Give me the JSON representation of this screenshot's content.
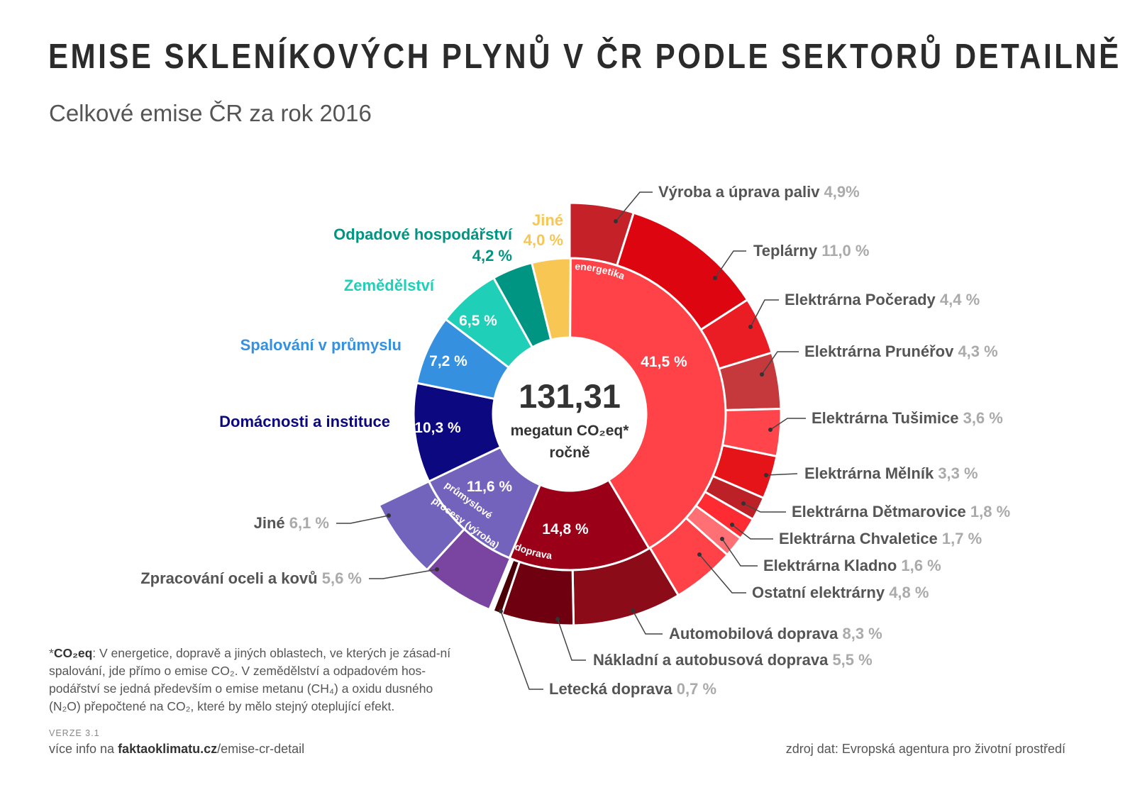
{
  "title": "EMISE SKLENÍKOVÝCH PLYNŮ V ČR PODLE SEKTORŮ DETAILNĚ",
  "subtitle": "Celkové emise ČR za rok 2016",
  "center": {
    "value": "131,31",
    "line1": "megatun CO₂eq*",
    "line2": "ročně"
  },
  "footnote": {
    "term": "CO₂eq",
    "text": ": V energetice, dopravě a jiných oblastech, ve kterých je zásad-ní spalování, jde přímo o emise CO₂. V zemědělství a odpadovém hos-podářství se jedná především o emise metanu (CH₄) a oxidu dusného (N₂O) přepočtené na CO₂, které by mělo stejný oteplující efekt."
  },
  "version": "VERZE 3.1",
  "more_info": {
    "prefix": "více info na ",
    "site": "faktaoklimatu.cz",
    "path": "/emise-cr-detail"
  },
  "source": "zdroj dat: Evropská agentura pro životní prostředí",
  "chart_data": {
    "type": "sunburst",
    "total": 131.31,
    "unit": "megatun CO₂eq ročně",
    "inner": [
      {
        "name": "energetika",
        "value": 41.5,
        "value_label": "41,5 %",
        "color": "#ff4248"
      },
      {
        "name": "doprava",
        "value": 14.8,
        "value_label": "14,8 %",
        "color": "#9b0019"
      },
      {
        "name": "průmyslové procesy (výroba)",
        "value": 11.6,
        "value_label": "11,6 %",
        "color": "#7463bd"
      },
      {
        "name": "Domácnosti a instituce",
        "value": 10.3,
        "value_label": "10,3 %",
        "color": "#0b0880"
      },
      {
        "name": "Spalování v průmyslu",
        "value": 7.2,
        "value_label": "7,2 %",
        "color": "#3591e0"
      },
      {
        "name": "Zemědělství",
        "value": 6.5,
        "value_label": "6,5 %",
        "color": "#20cfb7"
      },
      {
        "name": "Odpadové hospodářství",
        "value": 4.2,
        "value_label": "4,2 %",
        "color": "#009583"
      },
      {
        "name": "Jiné",
        "value": 4.0,
        "value_label": "4,0 %",
        "color": "#f7c653"
      }
    ],
    "outer": [
      {
        "name": "Výroba a úprava paliv",
        "value": 4.9,
        "value_label": "4,9%",
        "color": "#c42128"
      },
      {
        "name": "Teplárny",
        "value": 11.0,
        "value_label": "11,0 %",
        "color": "#dd0510"
      },
      {
        "name": "Elektrárna Počerady",
        "value": 4.4,
        "value_label": "4,4 %",
        "color": "#ea1c24"
      },
      {
        "name": "Elektrárna Prunéřov",
        "value": 4.3,
        "value_label": "4,3 %",
        "color": "#c5383c"
      },
      {
        "name": "Elektrárna Tušimice",
        "value": 3.6,
        "value_label": "3,6 %",
        "color": "#ff444b"
      },
      {
        "name": "Elektrárna Mělník",
        "value": 3.3,
        "value_label": "3,3 %",
        "color": "#e41419"
      },
      {
        "name": "Elektrárna Dětmarovice",
        "value": 1.8,
        "value_label": "1,8 %",
        "color": "#bb2126"
      },
      {
        "name": "Elektrárna Chvaletice",
        "value": 1.7,
        "value_label": "1,7 %",
        "color": "#ff2b33"
      },
      {
        "name": "Elektrárna Kladno",
        "value": 1.6,
        "value_label": "1,6 %",
        "color": "#ff7074"
      },
      {
        "name": "Ostatní elektrárny",
        "value": 4.8,
        "value_label": "4,8 %",
        "color": "#ff4248"
      },
      {
        "name": "Automobilová doprava",
        "value": 8.3,
        "value_label": "8,3 %",
        "color": "#8b0b19"
      },
      {
        "name": "Nákladní a autobusová doprava",
        "value": 5.5,
        "value_label": "5,5 %",
        "color": "#6e0010"
      },
      {
        "name": "Letecká doprava",
        "value": 0.7,
        "value_label": "0,7 %",
        "color": "#4b0008"
      },
      {
        "name": "gap",
        "value": 0.3,
        "value_label": "",
        "color": "#ffffff"
      },
      {
        "name": "Zpracování oceli a kovů",
        "value": 5.6,
        "value_label": "5,6 %",
        "color": "#7a44a1"
      },
      {
        "name": "Jiné",
        "value": 6.1,
        "value_label": "6,1 %",
        "color": "#7263bc"
      }
    ],
    "legend": "none"
  }
}
